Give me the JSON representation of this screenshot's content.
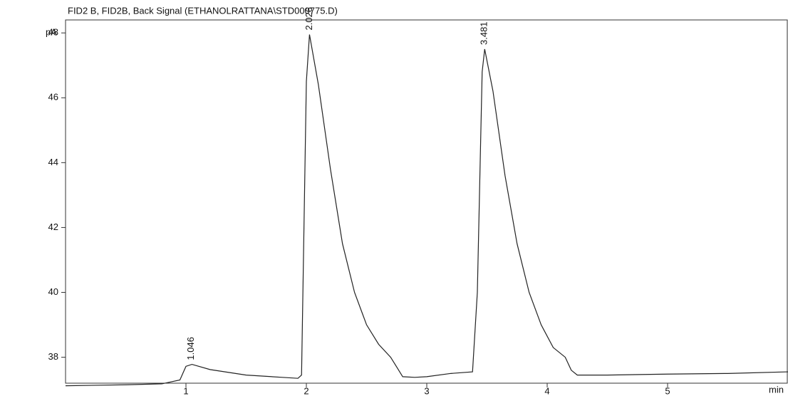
{
  "chart_data": {
    "type": "line",
    "title": "FID2 B, FID2B, Back Signal (ETHANOLRATTANA\\STD000775.D)",
    "y_label": "pA",
    "x_label": "min",
    "x": [
      0,
      0.5,
      0.8,
      0.95,
      1.0,
      1.05,
      1.2,
      1.5,
      1.8,
      1.93,
      1.96,
      2.0,
      2.026,
      2.1,
      2.2,
      2.3,
      2.4,
      2.5,
      2.6,
      2.7,
      2.75,
      2.8,
      2.9,
      3.0,
      3.2,
      3.38,
      3.42,
      3.46,
      3.481,
      3.55,
      3.65,
      3.75,
      3.85,
      3.95,
      4.05,
      4.15,
      4.2,
      4.25,
      4.5,
      5.0,
      5.5,
      6.0
    ],
    "series": [
      {
        "color": "#222222",
        "values": [
          37.12,
          37.15,
          37.18,
          37.3,
          37.72,
          37.78,
          37.62,
          37.45,
          37.38,
          37.35,
          37.45,
          46.5,
          47.95,
          46.4,
          43.8,
          41.5,
          40.0,
          39.0,
          38.4,
          38.0,
          37.7,
          37.4,
          37.38,
          37.4,
          37.5,
          37.55,
          40.0,
          46.8,
          47.5,
          46.2,
          43.6,
          41.5,
          40.0,
          39.0,
          38.3,
          38.0,
          37.6,
          37.45,
          37.45,
          37.48,
          37.5,
          37.55
        ]
      }
    ],
    "peak_labels": [
      1.046,
      2.026,
      3.481
    ],
    "xlim": [
      0,
      6
    ],
    "ylim": [
      37.2,
      48.4
    ],
    "xticks": [
      1,
      2,
      3,
      4,
      5
    ],
    "yticks": [
      38,
      40,
      42,
      44,
      46,
      48
    ],
    "grid": false
  }
}
